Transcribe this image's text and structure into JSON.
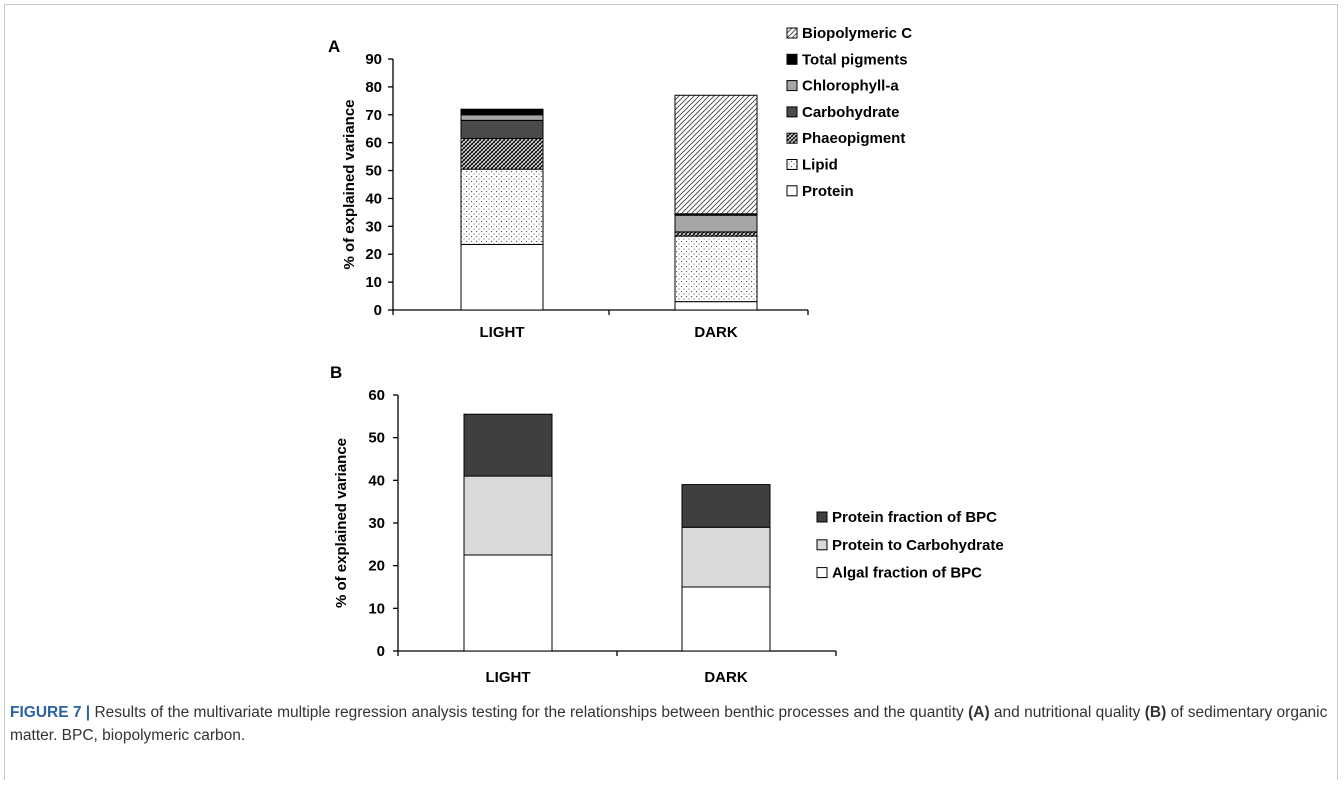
{
  "chart_data": [
    {
      "panel": "A",
      "type": "bar",
      "stacked": true,
      "categories": [
        "LIGHT",
        "DARK"
      ],
      "ylabel": "% of explained variance",
      "ylim": [
        0,
        90
      ],
      "yticks": [
        0,
        10,
        20,
        30,
        40,
        50,
        60,
        70,
        80,
        90
      ],
      "legend_position": "right",
      "series": [
        {
          "name": "Protein",
          "values": [
            23.5,
            3.0
          ],
          "fill": "#ffffff",
          "pattern": "none"
        },
        {
          "name": "Lipid",
          "values": [
            27.0,
            23.5
          ],
          "fill": "#ffffff",
          "pattern": "dots"
        },
        {
          "name": "Phaeopigment",
          "values": [
            11.0,
            1.5
          ],
          "fill": "#ffffff",
          "pattern": "crosshatch"
        },
        {
          "name": "Carbohydrate",
          "values": [
            6.5,
            0.0
          ],
          "fill": "#4a4a4a",
          "pattern": "none"
        },
        {
          "name": "Chlorophyll-a",
          "values": [
            2.0,
            6.0
          ],
          "fill": "#a6a6a6",
          "pattern": "none"
        },
        {
          "name": "Total pigments",
          "values": [
            2.0,
            0.5
          ],
          "fill": "#000000",
          "pattern": "none"
        },
        {
          "name": "Biopolymeric C",
          "values": [
            0.0,
            42.5
          ],
          "fill": "#ffffff",
          "pattern": "diagonal"
        }
      ],
      "totals": [
        72,
        77
      ]
    },
    {
      "panel": "B",
      "type": "bar",
      "stacked": true,
      "categories": [
        "LIGHT",
        "DARK"
      ],
      "ylabel": "% of explained variance",
      "ylim": [
        0,
        60
      ],
      "yticks": [
        0,
        10,
        20,
        30,
        40,
        50,
        60
      ],
      "legend_position": "right",
      "series": [
        {
          "name": "Algal fraction of BPC",
          "values": [
            22.5,
            15.0
          ],
          "fill": "#ffffff",
          "pattern": "none"
        },
        {
          "name": "Protein to Carbohydrate",
          "values": [
            18.5,
            14.0
          ],
          "fill": "#d9d9d9",
          "pattern": "none"
        },
        {
          "name": "Protein fraction of BPC",
          "values": [
            14.5,
            10.0
          ],
          "fill": "#3f3f3f",
          "pattern": "none"
        }
      ],
      "totals": [
        55.5,
        39
      ]
    }
  ],
  "caption": {
    "figure_number": "FIGURE 7 |",
    "part1": " Results of the multivariate multiple regression analysis testing for the relationships between benthic processes and the quantity ",
    "ref_a": "(A)",
    "part2": " and nutritional quality ",
    "ref_b": "(B)",
    "part3": " of sedimentary organic matter. BPC, biopolymeric carbon."
  }
}
